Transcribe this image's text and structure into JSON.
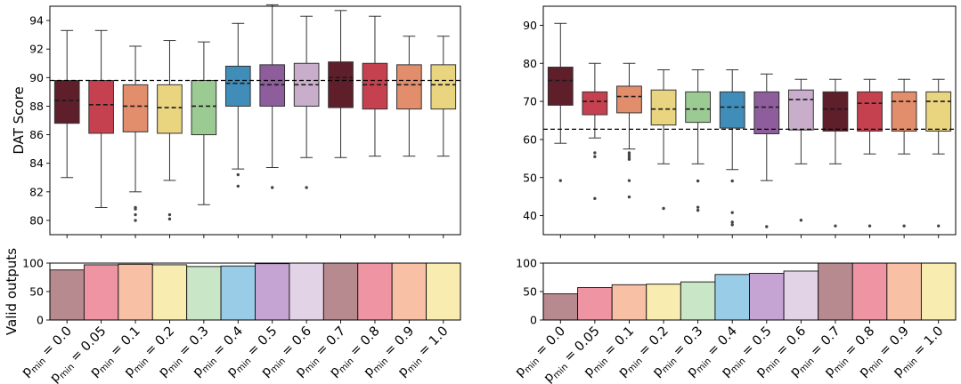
{
  "chart_data": [
    {
      "type": "box",
      "ylabel": "DAT Score",
      "ylim": [
        79,
        95
      ],
      "yticks": [
        80,
        82,
        84,
        86,
        88,
        90,
        92,
        94
      ],
      "reference_line": 89.8,
      "categories": [
        "p_min = 0.0",
        "p_min = 0.05",
        "p_min = 0.1",
        "p_min = 0.2",
        "p_min = 0.3",
        "p_min = 0.4",
        "p_min = 0.5",
        "p_min = 0.6",
        "p_min = 0.7",
        "p_min = 0.8",
        "p_min = 0.9",
        "p_min = 1.0"
      ],
      "boxes": [
        {
          "whislo": 83.0,
          "q1": 86.8,
          "med": 88.4,
          "q3": 89.8,
          "whishi": 93.3,
          "fliers": []
        },
        {
          "whislo": 80.9,
          "q1": 86.1,
          "med": 88.1,
          "q3": 89.8,
          "whishi": 93.3,
          "fliers": []
        },
        {
          "whislo": 82.0,
          "q1": 86.2,
          "med": 88.0,
          "q3": 89.5,
          "whishi": 92.2,
          "fliers": [
            80.9,
            80.8,
            80.4,
            80.0
          ]
        },
        {
          "whislo": 82.8,
          "q1": 86.1,
          "med": 87.9,
          "q3": 89.5,
          "whishi": 92.6,
          "fliers": [
            80.4,
            80.1
          ]
        },
        {
          "whislo": 81.1,
          "q1": 86.0,
          "med": 88.0,
          "q3": 89.8,
          "whishi": 92.5,
          "fliers": []
        },
        {
          "whislo": 83.6,
          "q1": 88.0,
          "med": 89.6,
          "q3": 90.8,
          "whishi": 93.8,
          "fliers": [
            83.2,
            82.4
          ]
        },
        {
          "whislo": 83.7,
          "q1": 88.0,
          "med": 89.5,
          "q3": 90.9,
          "whishi": 95.1,
          "fliers": [
            82.3
          ]
        },
        {
          "whislo": 84.4,
          "q1": 88.0,
          "med": 89.5,
          "q3": 91.0,
          "whishi": 94.3,
          "fliers": [
            82.3
          ]
        },
        {
          "whislo": 84.4,
          "q1": 87.9,
          "med": 90.0,
          "q3": 91.1,
          "whishi": 94.7,
          "fliers": []
        },
        {
          "whislo": 84.5,
          "q1": 87.8,
          "med": 89.5,
          "q3": 91.0,
          "whishi": 94.3,
          "fliers": []
        },
        {
          "whislo": 84.5,
          "q1": 87.8,
          "med": 89.5,
          "q3": 90.9,
          "whishi": 92.9,
          "fliers": []
        },
        {
          "whislo": 84.5,
          "q1": 87.8,
          "med": 89.5,
          "q3": 90.9,
          "whishi": 92.9,
          "fliers": []
        }
      ]
    },
    {
      "type": "box",
      "ylabel": "",
      "ylim": [
        35,
        95
      ],
      "yticks": [
        40,
        50,
        60,
        70,
        80,
        90
      ],
      "reference_line": 62.7,
      "categories": [
        "p_min = 0.0",
        "p_min = 0.05",
        "p_min = 0.1",
        "p_min = 0.2",
        "p_min = 0.3",
        "p_min = 0.4",
        "p_min = 0.5",
        "p_min = 0.6",
        "p_min = 0.7",
        "p_min = 0.8",
        "p_min = 0.9",
        "p_min = 1.0"
      ],
      "boxes": [
        {
          "whislo": 59.0,
          "q1": 69.0,
          "med": 75.5,
          "q3": 79.0,
          "whishi": 90.5,
          "fliers": [
            49.2
          ]
        },
        {
          "whislo": 60.4,
          "q1": 66.5,
          "med": 70.0,
          "q3": 72.5,
          "whishi": 80.0,
          "fliers": [
            56.5,
            55.5,
            44.5
          ]
        },
        {
          "whislo": 57.5,
          "q1": 67.0,
          "med": 71.3,
          "q3": 74.0,
          "whishi": 80.0,
          "fliers": [
            56.5,
            55.9,
            55.3,
            54.8,
            49.2,
            44.9
          ]
        },
        {
          "whislo": 53.6,
          "q1": 63.8,
          "med": 68.0,
          "q3": 73.0,
          "whishi": 78.3,
          "fliers": [
            41.9
          ]
        },
        {
          "whislo": 53.6,
          "q1": 64.5,
          "med": 68.0,
          "q3": 72.5,
          "whishi": 78.3,
          "fliers": [
            49.1,
            42.2,
            41.4
          ]
        },
        {
          "whislo": 52.1,
          "q1": 63.0,
          "med": 68.5,
          "q3": 72.5,
          "whishi": 78.3,
          "fliers": [
            49.1,
            40.8,
            38.3,
            37.6
          ]
        },
        {
          "whislo": 49.2,
          "q1": 61.5,
          "med": 68.5,
          "q3": 72.5,
          "whishi": 77.2,
          "fliers": [
            37.1
          ]
        },
        {
          "whislo": 53.6,
          "q1": 62.5,
          "med": 70.5,
          "q3": 73.0,
          "whishi": 75.8,
          "fliers": [
            38.8
          ]
        },
        {
          "whislo": 53.6,
          "q1": 62.2,
          "med": 68.0,
          "q3": 72.5,
          "whishi": 75.8,
          "fliers": [
            37.3
          ]
        },
        {
          "whislo": 56.2,
          "q1": 62.2,
          "med": 69.5,
          "q3": 72.5,
          "whishi": 75.8,
          "fliers": [
            37.3
          ]
        },
        {
          "whislo": 56.2,
          "q1": 62.2,
          "med": 70.0,
          "q3": 72.5,
          "whishi": 75.8,
          "fliers": [
            37.3
          ]
        },
        {
          "whislo": 56.2,
          "q1": 62.2,
          "med": 70.0,
          "q3": 72.5,
          "whishi": 75.8,
          "fliers": [
            37.3
          ]
        }
      ]
    },
    {
      "type": "bar",
      "ylabel": "Valid outputs",
      "ylim": [
        0,
        100
      ],
      "yticks": [
        0,
        50,
        100
      ],
      "categories": [
        "p_min = 0.0",
        "p_min = 0.05",
        "p_min = 0.1",
        "p_min = 0.2",
        "p_min = 0.3",
        "p_min = 0.4",
        "p_min = 0.5",
        "p_min = 0.6",
        "p_min = 0.7",
        "p_min = 0.8",
        "p_min = 0.9",
        "p_min = 1.0"
      ],
      "values": [
        88,
        97,
        98,
        97,
        94,
        95,
        99,
        100,
        100,
        100,
        100,
        100
      ]
    },
    {
      "type": "bar",
      "ylabel": "",
      "ylim": [
        0,
        100
      ],
      "yticks": [
        0,
        50,
        100
      ],
      "categories": [
        "p_min = 0.0",
        "p_min = 0.05",
        "p_min = 0.1",
        "p_min = 0.2",
        "p_min = 0.3",
        "p_min = 0.4",
        "p_min = 0.5",
        "p_min = 0.6",
        "p_min = 0.7",
        "p_min = 0.8",
        "p_min = 0.9",
        "p_min = 1.0"
      ],
      "values": [
        46,
        57,
        62,
        63,
        67,
        80,
        82,
        86,
        100,
        100,
        100,
        100
      ]
    }
  ],
  "tick_labels": {
    "base": "p",
    "subscript": "min",
    "values": [
      "0.0",
      "0.05",
      "0.1",
      "0.2",
      "0.3",
      "0.4",
      "0.5",
      "0.6",
      "0.7",
      "0.8",
      "0.9",
      "1.0"
    ]
  },
  "colors": {
    "box": [
      "#5e1f2b",
      "#c6414f",
      "#e28d6b",
      "#e9d480",
      "#9bcb93",
      "#3f8db8",
      "#8d5d9c",
      "#c8aecb",
      "#5e1f2b",
      "#c6414f",
      "#e28d6b",
      "#e9d480"
    ],
    "bar": [
      "#b78a8f",
      "#ef94a2",
      "#f8c0a5",
      "#f8ecb0",
      "#c9e6c7",
      "#99cde7",
      "#c5a4d3",
      "#e3d3e7",
      "#b78a8f",
      "#ef94a2",
      "#f8c0a5",
      "#f8ecb0"
    ]
  }
}
